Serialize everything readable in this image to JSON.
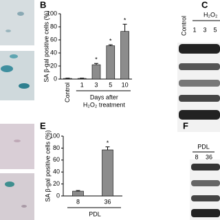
{
  "chart_data": [
    {
      "type": "bar",
      "panel": "B",
      "ylabel": "SA β-gal positive cells (%)",
      "categories": [
        "Control",
        "1",
        "3",
        "5",
        "10"
      ],
      "values": [
        1,
        1,
        22,
        51,
        73
      ],
      "errors": [
        0.5,
        0.5,
        2,
        1.5,
        11
      ],
      "significance": [
        null,
        null,
        "*",
        "*",
        "*"
      ],
      "xlabel": [
        "Days after",
        "H₂O₂ treatment"
      ],
      "color": "#8c8c8c",
      "ylim": [
        0,
        100
      ],
      "yticks": [
        0,
        20,
        40,
        60,
        80,
        100
      ]
    },
    {
      "type": "bar",
      "panel": "E",
      "ylabel": "SA β-gal positive cells (%)",
      "categories": [
        "8",
        "36"
      ],
      "values": [
        8,
        77
      ],
      "errors": [
        1,
        5
      ],
      "significance": [
        null,
        "*"
      ],
      "xlabel": [
        "PDL"
      ],
      "color": "#8c8c8c",
      "ylim": [
        0,
        100
      ],
      "yticks": [
        0,
        20,
        40,
        60,
        80,
        100
      ]
    }
  ],
  "blots": {
    "C": {
      "panel": "C",
      "control": "Control",
      "treatment": "H₂O₂",
      "lanes": [
        "1",
        "3",
        "5"
      ]
    },
    "F": {
      "panel": "F",
      "group": "PDL",
      "lanes": [
        "8",
        "36"
      ]
    }
  }
}
